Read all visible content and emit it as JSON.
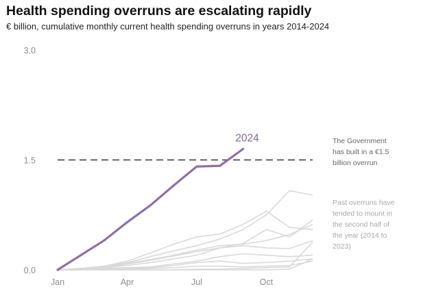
{
  "title": "Health spending overruns are escalating rapidly",
  "subtitle": "€ billion, cumulative monthly current health spending overruns in years 2014-2024",
  "chart_data": {
    "type": "line",
    "x_ticks": [
      "Jan",
      "Apr",
      "Jul",
      "Oct"
    ],
    "y_ticks": [
      "0.0",
      "1.5",
      "3.0"
    ],
    "ylim": [
      0,
      3.0
    ],
    "xlim": [
      1,
      12
    ],
    "grid": false,
    "highlight_series": {
      "name": "2024",
      "color": "#8c70a4",
      "x": [
        1,
        2,
        3,
        4,
        5,
        6,
        7,
        8,
        9
      ],
      "values": [
        0.0,
        0.2,
        0.4,
        0.65,
        0.88,
        1.15,
        1.41,
        1.42,
        1.65
      ]
    },
    "past_series_color": "#d9d9d9",
    "past_series": [
      {
        "x": [
          1,
          2,
          3,
          4,
          5,
          6,
          7,
          8,
          9,
          10,
          11,
          12
        ],
        "values": [
          0.0,
          0.02,
          0.05,
          0.1,
          0.18,
          0.26,
          0.33,
          0.42,
          0.55,
          0.75,
          1.08,
          1.02
        ]
      },
      {
        "x": [
          1,
          2,
          3,
          4,
          5,
          6,
          7,
          8,
          9,
          10,
          11,
          12
        ],
        "values": [
          0.0,
          0.02,
          0.05,
          0.12,
          0.23,
          0.35,
          0.45,
          0.49,
          0.62,
          0.8,
          0.58,
          0.55
        ]
      },
      {
        "x": [
          1,
          2,
          3,
          4,
          5,
          6,
          7,
          8,
          9,
          10,
          11,
          12
        ],
        "values": [
          0.0,
          0.01,
          0.03,
          0.08,
          0.13,
          0.19,
          0.25,
          0.3,
          0.36,
          0.55,
          0.45,
          0.68
        ]
      },
      {
        "x": [
          1,
          2,
          3,
          4,
          5,
          6,
          7,
          8,
          9,
          10,
          11,
          12
        ],
        "values": [
          0.0,
          0.01,
          0.04,
          0.09,
          0.14,
          0.2,
          0.27,
          0.33,
          0.35,
          0.4,
          0.48,
          0.62
        ]
      },
      {
        "x": [
          1,
          2,
          3,
          4,
          5,
          6,
          7,
          8,
          9,
          10,
          11,
          12
        ],
        "values": [
          0.0,
          0.01,
          0.03,
          0.06,
          0.1,
          0.15,
          0.2,
          0.3,
          0.33,
          0.3,
          0.29,
          0.4
        ]
      },
      {
        "x": [
          1,
          2,
          3,
          4,
          5,
          6,
          7,
          8,
          9,
          10,
          11,
          12
        ],
        "values": [
          0.0,
          0.01,
          0.02,
          0.03,
          0.04,
          0.08,
          0.12,
          0.18,
          0.22,
          0.2,
          0.18,
          0.2
        ]
      },
      {
        "x": [
          1,
          2,
          3,
          4,
          5,
          6,
          7,
          8,
          9,
          10,
          11,
          12
        ],
        "values": [
          0.0,
          0.0,
          0.02,
          0.02,
          0.03,
          0.06,
          0.1,
          0.12,
          0.09,
          0.1,
          0.12,
          0.15
        ]
      },
      {
        "x": [
          1,
          2,
          3,
          4,
          5,
          6,
          7,
          8,
          9,
          10,
          11,
          12
        ],
        "values": [
          0.0,
          0.0,
          0.01,
          0.01,
          0.02,
          0.03,
          0.05,
          0.05,
          0.04,
          0.05,
          0.06,
          0.12
        ]
      },
      {
        "x": [
          1,
          2,
          3,
          4,
          5,
          6,
          7,
          8,
          9,
          10,
          11,
          12
        ],
        "values": [
          0.0,
          0.0,
          0.0,
          0.0,
          0.0,
          0.0,
          0.01,
          0.01,
          0.02,
          0.03,
          0.04,
          0.38
        ]
      },
      {
        "x": [
          1,
          2,
          3,
          4,
          5,
          6,
          7,
          8,
          9,
          10,
          11,
          12
        ],
        "values": [
          0.0,
          0.0,
          0.0,
          0.0,
          0.0,
          0.0,
          0.0,
          0.0,
          0.0,
          0.0,
          0.01,
          0.15
        ]
      }
    ],
    "reference_line": {
      "value": 1.5,
      "style": "dashed",
      "color": "#333333"
    },
    "annotations": [
      {
        "lines": [
          "The Government",
          "has built in a €1.5",
          "billion overrun"
        ],
        "color": "#666666"
      },
      {
        "lines": [
          "Past overruns have",
          "tended to mount in",
          "the second half of",
          "the year (2014 to",
          "2023)"
        ],
        "color": "#a8a8a8"
      }
    ]
  }
}
